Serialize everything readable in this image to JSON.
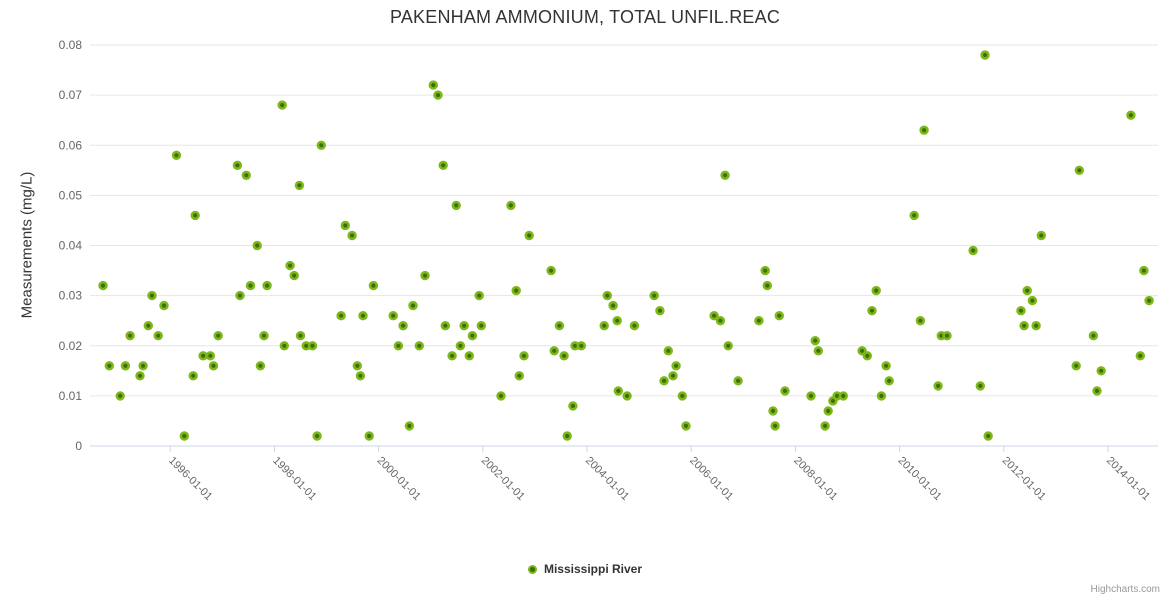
{
  "chart": {
    "title": "PAKENHAM AMMONIUM, TOTAL UNFIL.REAC",
    "credit": "Highcharts.com"
  },
  "colors": {
    "series_outer": "#7eb719",
    "series_inner": "#3c6e05",
    "grid": "#e6e6e6",
    "axis": "#ccd6eb",
    "title_text": "#333333",
    "tick_text": "#666666",
    "credit_text": "#999999"
  },
  "chart_data": {
    "type": "scatter",
    "title": "PAKENHAM AMMONIUM, TOTAL UNFIL.REAC",
    "xlabel": "",
    "ylabel": "Measurements (mg/L)",
    "grid": "horizontal",
    "legend_position": "bottom-center",
    "x_axis": {
      "kind": "datetime",
      "x_format": "decimal_year",
      "min_year": 1994.46,
      "max_year": 2014.96,
      "tick_years": [
        1996,
        1998,
        2000,
        2002,
        2004,
        2006,
        2008,
        2010,
        2012,
        2014
      ],
      "tick_labels": [
        "1996-01-01",
        "1998-01-01",
        "2000-01-01",
        "2002-01-01",
        "2004-01-01",
        "2006-01-01",
        "2008-01-01",
        "2010-01-01",
        "2012-01-01",
        "2014-01-01"
      ],
      "label_rotation_deg": 45
    },
    "y_axis": {
      "min": 0,
      "max": 0.08,
      "tick_interval": 0.01,
      "tick_values": [
        0,
        0.01,
        0.02,
        0.03,
        0.04,
        0.05,
        0.06,
        0.07,
        0.08
      ],
      "tick_labels": [
        "0",
        "0.01",
        "0.02",
        "0.03",
        "0.04",
        "0.05",
        "0.06",
        "0.07",
        "0.08"
      ]
    },
    "legend": [
      {
        "name": "Mississippi River",
        "color": "#7eb719"
      }
    ],
    "series": [
      {
        "name": "Mississippi River",
        "points": [
          [
            1994.71,
            0.032
          ],
          [
            1994.83,
            0.016
          ],
          [
            1995.04,
            0.01
          ],
          [
            1995.14,
            0.016
          ],
          [
            1995.23,
            0.022
          ],
          [
            1995.42,
            0.014
          ],
          [
            1995.48,
            0.016
          ],
          [
            1995.58,
            0.024
          ],
          [
            1995.65,
            0.03
          ],
          [
            1995.77,
            0.022
          ],
          [
            1995.88,
            0.028
          ],
          [
            1996.12,
            0.058
          ],
          [
            1996.27,
            0.002
          ],
          [
            1996.44,
            0.014
          ],
          [
            1996.48,
            0.046
          ],
          [
            1996.63,
            0.018
          ],
          [
            1996.77,
            0.018
          ],
          [
            1996.83,
            0.016
          ],
          [
            1996.92,
            0.022
          ],
          [
            1997.29,
            0.056
          ],
          [
            1997.34,
            0.03
          ],
          [
            1997.46,
            0.054
          ],
          [
            1997.54,
            0.032
          ],
          [
            1997.67,
            0.04
          ],
          [
            1997.73,
            0.016
          ],
          [
            1997.8,
            0.022
          ],
          [
            1997.86,
            0.032
          ],
          [
            1998.15,
            0.068
          ],
          [
            1998.19,
            0.02
          ],
          [
            1998.3,
            0.036
          ],
          [
            1998.38,
            0.034
          ],
          [
            1998.48,
            0.052
          ],
          [
            1998.5,
            0.022
          ],
          [
            1998.61,
            0.02
          ],
          [
            1998.73,
            0.02
          ],
          [
            1998.82,
            0.002
          ],
          [
            1998.9,
            0.06
          ],
          [
            1999.28,
            0.026
          ],
          [
            1999.36,
            0.044
          ],
          [
            1999.49,
            0.042
          ],
          [
            1999.59,
            0.016
          ],
          [
            1999.65,
            0.014
          ],
          [
            1999.7,
            0.026
          ],
          [
            1999.82,
            0.002
          ],
          [
            1999.9,
            0.032
          ],
          [
            2000.28,
            0.026
          ],
          [
            2000.38,
            0.02
          ],
          [
            2000.47,
            0.024
          ],
          [
            2000.59,
            0.004
          ],
          [
            2000.66,
            0.028
          ],
          [
            2000.78,
            0.02
          ],
          [
            2000.89,
            0.034
          ],
          [
            2001.05,
            0.072
          ],
          [
            2001.14,
            0.07
          ],
          [
            2001.24,
            0.056
          ],
          [
            2001.28,
            0.024
          ],
          [
            2001.41,
            0.018
          ],
          [
            2001.49,
            0.048
          ],
          [
            2001.57,
            0.02
          ],
          [
            2001.64,
            0.024
          ],
          [
            2001.74,
            0.018
          ],
          [
            2001.8,
            0.022
          ],
          [
            2001.93,
            0.03
          ],
          [
            2001.97,
            0.024
          ],
          [
            2002.35,
            0.01
          ],
          [
            2002.54,
            0.048
          ],
          [
            2002.64,
            0.031
          ],
          [
            2002.7,
            0.014
          ],
          [
            2002.79,
            0.018
          ],
          [
            2002.89,
            0.042
          ],
          [
            2003.31,
            0.035
          ],
          [
            2003.37,
            0.019
          ],
          [
            2003.47,
            0.024
          ],
          [
            2003.56,
            0.018
          ],
          [
            2003.62,
            0.002
          ],
          [
            2003.73,
            0.008
          ],
          [
            2003.77,
            0.02
          ],
          [
            2003.89,
            0.02
          ],
          [
            2004.33,
            0.024
          ],
          [
            2004.39,
            0.03
          ],
          [
            2004.5,
            0.028
          ],
          [
            2004.58,
            0.025
          ],
          [
            2004.6,
            0.011
          ],
          [
            2004.77,
            0.01
          ],
          [
            2004.91,
            0.024
          ],
          [
            2005.29,
            0.03
          ],
          [
            2005.4,
            0.027
          ],
          [
            2005.48,
            0.013
          ],
          [
            2005.56,
            0.019
          ],
          [
            2005.65,
            0.014
          ],
          [
            2005.71,
            0.016
          ],
          [
            2005.83,
            0.01
          ],
          [
            2005.9,
            0.004
          ],
          [
            2006.44,
            0.026
          ],
          [
            2006.56,
            0.025
          ],
          [
            2006.65,
            0.054
          ],
          [
            2006.71,
            0.02
          ],
          [
            2006.9,
            0.013
          ],
          [
            2007.3,
            0.025
          ],
          [
            2007.42,
            0.035
          ],
          [
            2007.46,
            0.032
          ],
          [
            2007.57,
            0.007
          ],
          [
            2007.61,
            0.004
          ],
          [
            2007.69,
            0.026
          ],
          [
            2007.8,
            0.011
          ],
          [
            2008.3,
            0.01
          ],
          [
            2008.38,
            0.021
          ],
          [
            2008.44,
            0.019
          ],
          [
            2008.57,
            0.004
          ],
          [
            2008.63,
            0.007
          ],
          [
            2008.72,
            0.009
          ],
          [
            2008.8,
            0.01
          ],
          [
            2008.92,
            0.01
          ],
          [
            2009.28,
            0.019
          ],
          [
            2009.38,
            0.018
          ],
          [
            2009.47,
            0.027
          ],
          [
            2009.55,
            0.031
          ],
          [
            2009.65,
            0.01
          ],
          [
            2009.74,
            0.016
          ],
          [
            2009.8,
            0.013
          ],
          [
            2010.28,
            0.046
          ],
          [
            2010.4,
            0.025
          ],
          [
            2010.47,
            0.063
          ],
          [
            2010.74,
            0.012
          ],
          [
            2010.8,
            0.022
          ],
          [
            2010.91,
            0.022
          ],
          [
            2011.41,
            0.039
          ],
          [
            2011.55,
            0.012
          ],
          [
            2011.64,
            0.078
          ],
          [
            2011.7,
            0.002
          ],
          [
            2012.33,
            0.027
          ],
          [
            2012.39,
            0.024
          ],
          [
            2012.45,
            0.031
          ],
          [
            2012.55,
            0.029
          ],
          [
            2012.62,
            0.024
          ],
          [
            2012.72,
            0.042
          ],
          [
            2013.39,
            0.016
          ],
          [
            2013.45,
            0.055
          ],
          [
            2013.72,
            0.022
          ],
          [
            2013.79,
            0.011
          ],
          [
            2013.87,
            0.015
          ],
          [
            2014.44,
            0.066
          ],
          [
            2014.62,
            0.018
          ],
          [
            2014.69,
            0.035
          ],
          [
            2014.79,
            0.029
          ]
        ]
      }
    ]
  }
}
